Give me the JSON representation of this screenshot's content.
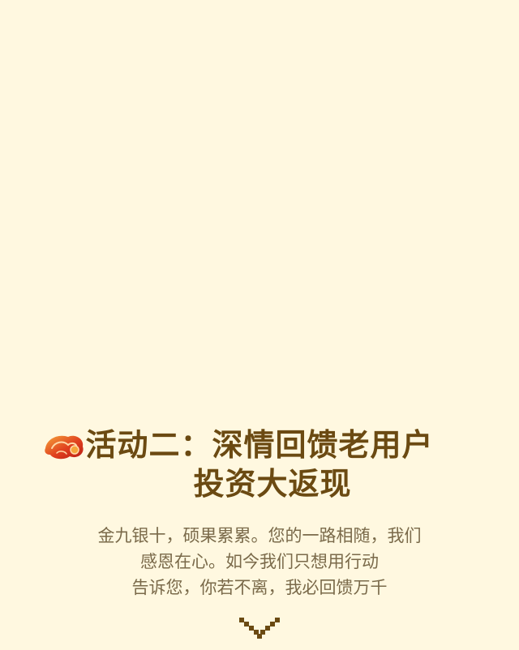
{
  "title": {
    "line1": "活动二：深情回馈老用户",
    "line2": "投资大返现"
  },
  "description": {
    "line1": "金九银十，硕果累累。您的一路相随，我们",
    "line2": "感恩在心。如今我们只想用行动",
    "line3": "告诉您，你若不离，我必回馈万千"
  },
  "icons": {
    "title_emblem": "auspicious-cloud-icon",
    "scroll_hint": "chevron-down-icon"
  },
  "colors": {
    "background": "#fff8e0",
    "title": "#6b4a12",
    "body_text": "#7a6a4a",
    "emblem_red": "#d8341e",
    "emblem_orange": "#f08a2a"
  }
}
